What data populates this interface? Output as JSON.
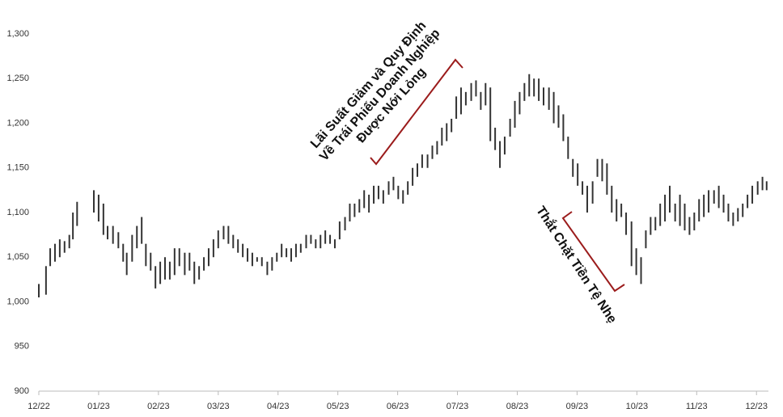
{
  "chart_data": {
    "type": "range",
    "color": "#333333",
    "ylim": [
      900,
      1300
    ],
    "yticks": [
      900,
      950,
      {
        "value": 1000,
        "label": "1,000"
      },
      {
        "value": 1050,
        "label": "1,050"
      },
      {
        "value": 1100,
        "label": "1,100"
      },
      {
        "value": 1150,
        "label": "1,150"
      },
      {
        "value": 1200,
        "label": "1,200"
      },
      {
        "value": 1250,
        "label": "1,250"
      },
      {
        "value": 1300,
        "label": "1,300"
      }
    ],
    "xlim": [
      0,
      12.2
    ],
    "xticks": [
      {
        "value": 0,
        "label": "12/22"
      },
      {
        "value": 1,
        "label": "01/23"
      },
      {
        "value": 2,
        "label": "02/23"
      },
      {
        "value": 3,
        "label": "03/23"
      },
      {
        "value": 4,
        "label": "04/23"
      },
      {
        "value": 5,
        "label": "05/23"
      },
      {
        "value": 6,
        "label": "06/23"
      },
      {
        "value": 7,
        "label": "07/23"
      },
      {
        "value": 8,
        "label": "08/23"
      },
      {
        "value": 9,
        "label": "09/23"
      },
      {
        "value": 10,
        "label": "10/23"
      },
      {
        "value": 11,
        "label": "11/23"
      },
      {
        "value": 12,
        "label": "12/23"
      }
    ],
    "x": [
      0,
      0.12,
      0.19,
      0.27,
      0.35,
      0.43,
      0.51,
      0.57,
      0.64,
      0.92,
      1.0,
      1.08,
      1.15,
      1.24,
      1.33,
      1.41,
      1.47,
      1.56,
      1.64,
      1.72,
      1.79,
      1.87,
      1.95,
      2.03,
      2.11,
      2.19,
      2.27,
      2.35,
      2.44,
      2.52,
      2.6,
      2.68,
      2.76,
      2.84,
      2.92,
      3.0,
      3.09,
      3.17,
      3.25,
      3.33,
      3.41,
      3.49,
      3.57,
      3.65,
      3.73,
      3.82,
      3.9,
      3.98,
      4.06,
      4.14,
      4.22,
      4.3,
      4.38,
      4.47,
      4.55,
      4.63,
      4.71,
      4.79,
      4.87,
      4.95,
      5.03,
      5.12,
      5.2,
      5.28,
      5.36,
      5.44,
      5.52,
      5.6,
      5.68,
      5.76,
      5.85,
      5.93,
      6.01,
      6.09,
      6.17,
      6.25,
      6.33,
      6.41,
      6.5,
      6.58,
      6.66,
      6.74,
      6.82,
      6.9,
      6.98,
      7.06,
      7.14,
      7.23,
      7.31,
      7.39,
      7.47,
      7.55,
      7.63,
      7.71,
      7.79,
      7.88,
      7.96,
      8.04,
      8.12,
      8.2,
      8.28,
      8.36,
      8.44,
      8.53,
      8.61,
      8.69,
      8.77,
      8.85,
      8.93,
      9.01,
      9.09,
      9.17,
      9.26,
      9.34,
      9.42,
      9.5,
      9.58,
      9.66,
      9.74,
      9.82,
      9.91,
      9.99,
      10.07,
      10.15,
      10.23,
      10.31,
      10.39,
      10.47,
      10.55,
      10.64,
      10.72,
      10.8,
      10.88,
      10.96,
      11.04,
      11.12,
      11.2,
      11.29,
      11.37,
      11.45,
      11.53,
      11.61,
      11.69,
      11.77,
      11.85,
      11.93,
      12.02,
      12.1,
      12.17
    ],
    "low": [
      1005,
      1008,
      1040,
      1045,
      1050,
      1055,
      1060,
      1070,
      1085,
      1100,
      1090,
      1075,
      1070,
      1065,
      1060,
      1045,
      1030,
      1045,
      1060,
      1065,
      1040,
      1035,
      1015,
      1020,
      1025,
      1025,
      1030,
      1040,
      1030,
      1035,
      1020,
      1025,
      1035,
      1040,
      1050,
      1060,
      1070,
      1065,
      1060,
      1055,
      1050,
      1045,
      1040,
      1045,
      1040,
      1030,
      1035,
      1045,
      1050,
      1050,
      1045,
      1050,
      1055,
      1060,
      1065,
      1060,
      1060,
      1065,
      1065,
      1060,
      1070,
      1080,
      1090,
      1095,
      1100,
      1105,
      1100,
      1110,
      1115,
      1110,
      1120,
      1125,
      1115,
      1110,
      1120,
      1130,
      1140,
      1150,
      1150,
      1160,
      1165,
      1175,
      1180,
      1190,
      1205,
      1210,
      1220,
      1225,
      1230,
      1215,
      1220,
      1180,
      1170,
      1150,
      1165,
      1185,
      1195,
      1210,
      1225,
      1230,
      1230,
      1225,
      1220,
      1215,
      1200,
      1195,
      1180,
      1160,
      1140,
      1130,
      1120,
      1100,
      1110,
      1140,
      1135,
      1120,
      1100,
      1090,
      1095,
      1075,
      1040,
      1030,
      1020,
      1060,
      1075,
      1080,
      1085,
      1090,
      1100,
      1090,
      1085,
      1080,
      1075,
      1080,
      1090,
      1095,
      1100,
      1110,
      1105,
      1100,
      1090,
      1085,
      1090,
      1095,
      1105,
      1110,
      1120,
      1125,
      1125
    ],
    "high": [
      1020,
      1040,
      1060,
      1065,
      1070,
      1068,
      1075,
      1100,
      1112,
      1125,
      1120,
      1110,
      1085,
      1085,
      1078,
      1065,
      1055,
      1075,
      1085,
      1095,
      1065,
      1055,
      1040,
      1045,
      1050,
      1045,
      1060,
      1060,
      1055,
      1055,
      1045,
      1040,
      1050,
      1060,
      1070,
      1080,
      1085,
      1085,
      1075,
      1070,
      1065,
      1060,
      1055,
      1050,
      1050,
      1045,
      1050,
      1055,
      1065,
      1060,
      1060,
      1065,
      1065,
      1075,
      1075,
      1070,
      1075,
      1080,
      1075,
      1070,
      1090,
      1095,
      1110,
      1110,
      1115,
      1125,
      1120,
      1130,
      1130,
      1125,
      1135,
      1140,
      1130,
      1125,
      1135,
      1150,
      1155,
      1165,
      1165,
      1175,
      1180,
      1195,
      1200,
      1205,
      1230,
      1240,
      1235,
      1245,
      1248,
      1235,
      1245,
      1240,
      1195,
      1180,
      1185,
      1205,
      1225,
      1235,
      1245,
      1255,
      1250,
      1250,
      1240,
      1240,
      1235,
      1220,
      1210,
      1185,
      1160,
      1155,
      1135,
      1130,
      1135,
      1160,
      1160,
      1155,
      1130,
      1115,
      1110,
      1100,
      1090,
      1060,
      1050,
      1080,
      1095,
      1095,
      1110,
      1120,
      1130,
      1110,
      1120,
      1110,
      1095,
      1100,
      1115,
      1120,
      1125,
      1125,
      1130,
      1120,
      1110,
      1100,
      1105,
      1110,
      1120,
      1130,
      1135,
      1140,
      1135
    ],
    "annotations": [
      {
        "lines": [
          "Lãi Suất Giảm và Quy Định",
          "Về Trái Phiếu Doanh Nghiệp",
          "Được Nới Lỏng"
        ]
      },
      {
        "lines": [
          "Thắt Chặt Tiền Tệ Nhẹ"
        ]
      }
    ]
  }
}
